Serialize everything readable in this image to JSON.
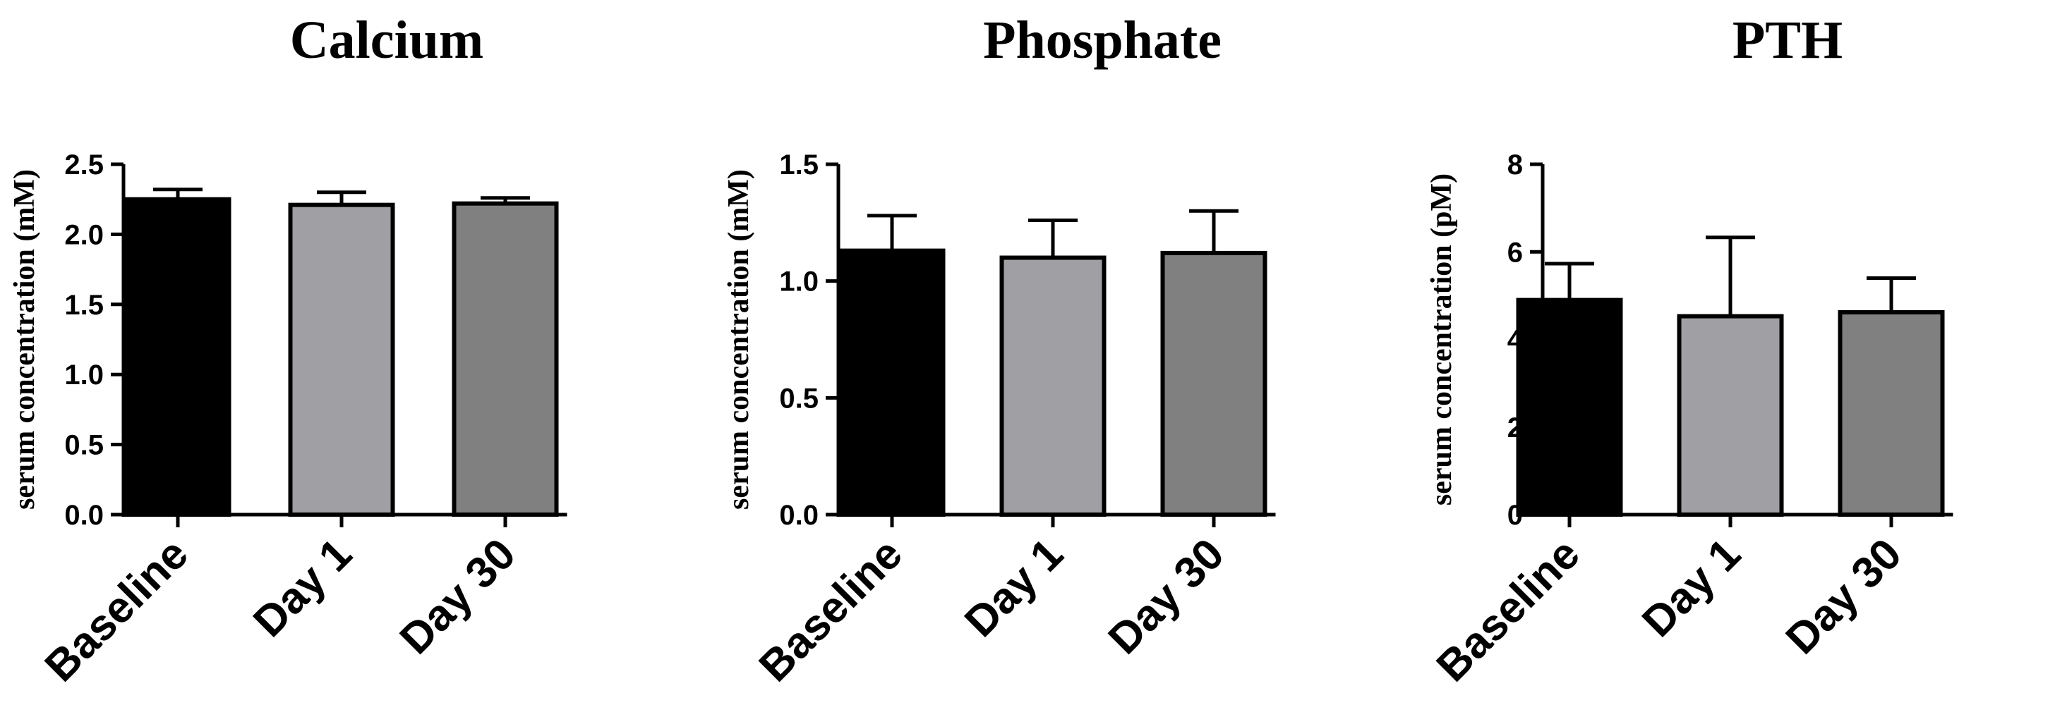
{
  "chart_data": [
    {
      "type": "bar",
      "title": "Calcium",
      "ylabel": "serum concentration (mM)",
      "categories": [
        "Baseline",
        "Day 1",
        "Day 30"
      ],
      "values": [
        2.25,
        2.21,
        2.22
      ],
      "error_upper": [
        0.07,
        0.09,
        0.04
      ],
      "ylim": [
        0,
        2.5
      ],
      "yticks": [
        "0.0",
        "0.5",
        "1.0",
        "1.5",
        "2.0",
        "2.5"
      ],
      "ytick_values": [
        0,
        0.5,
        1.0,
        1.5,
        2.0,
        2.5
      ],
      "bar_colors": [
        "#000000",
        "#a0a0a4",
        "#808080"
      ],
      "grid": false
    },
    {
      "type": "bar",
      "title": "Phosphate",
      "ylabel": "serum concentration (mM)",
      "categories": [
        "Baseline",
        "Day 1",
        "Day 30"
      ],
      "values": [
        1.13,
        1.1,
        1.12
      ],
      "error_upper": [
        0.15,
        0.16,
        0.18
      ],
      "ylim": [
        0,
        1.5
      ],
      "yticks": [
        "0.0",
        "0.5",
        "1.0",
        "1.5"
      ],
      "ytick_values": [
        0,
        0.5,
        1.0,
        1.5
      ],
      "bar_colors": [
        "#000000",
        "#a0a0a4",
        "#808080"
      ],
      "grid": false
    },
    {
      "type": "bar",
      "title": "PTH",
      "ylabel": "serum concentration (pM)",
      "categories": [
        "Baseline",
        "Day 1",
        "Day 30"
      ],
      "values": [
        4.9,
        4.53,
        4.62
      ],
      "error_upper": [
        0.83,
        1.8,
        0.78
      ],
      "ylim": [
        0,
        8
      ],
      "yticks": [
        "0",
        "2",
        "4",
        "6",
        "8"
      ],
      "ytick_values": [
        0,
        2,
        4,
        6,
        8
      ],
      "bar_colors": [
        "#000000",
        "#a0a0a4",
        "#808080"
      ],
      "grid": false
    }
  ]
}
